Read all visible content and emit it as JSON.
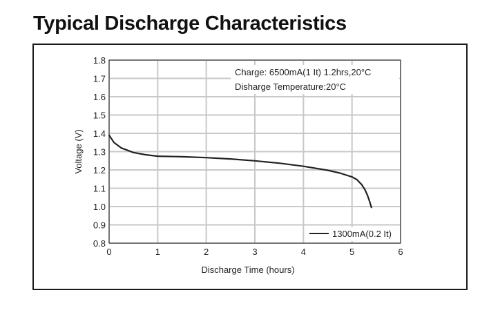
{
  "page": {
    "title": "Typical Discharge Characteristics"
  },
  "chart_data": {
    "type": "line",
    "title": "",
    "xlabel": "Discharge Time (hours)",
    "ylabel": "Voltage (V)",
    "xlim": [
      0,
      6
    ],
    "ylim": [
      0.8,
      1.8
    ],
    "x_ticks": [
      "0",
      "1",
      "2",
      "3",
      "4",
      "5",
      "6"
    ],
    "y_ticks": [
      "0.8",
      "0.9",
      "1.0",
      "1.1",
      "1.2",
      "1.3",
      "1.4",
      "1.5",
      "1.6",
      "1.7",
      "1.8"
    ],
    "grid": true,
    "legend_position": "bottom-right",
    "annotations": [
      "Charge: 6500mA(1 It)   1.2hrs,20°C",
      "Disharge Temperature:20°C"
    ],
    "series": [
      {
        "name": "1300mA(0.2 It)",
        "color": "#222222",
        "x": [
          0,
          0.1,
          0.25,
          0.5,
          0.75,
          1.0,
          1.5,
          2.0,
          2.5,
          3.0,
          3.5,
          4.0,
          4.5,
          4.75,
          5.0,
          5.1,
          5.2,
          5.27,
          5.32,
          5.36,
          5.4
        ],
        "y": [
          1.39,
          1.35,
          1.32,
          1.295,
          1.283,
          1.275,
          1.272,
          1.267,
          1.26,
          1.25,
          1.237,
          1.22,
          1.198,
          1.183,
          1.162,
          1.147,
          1.12,
          1.09,
          1.06,
          1.03,
          0.995
        ]
      }
    ]
  }
}
